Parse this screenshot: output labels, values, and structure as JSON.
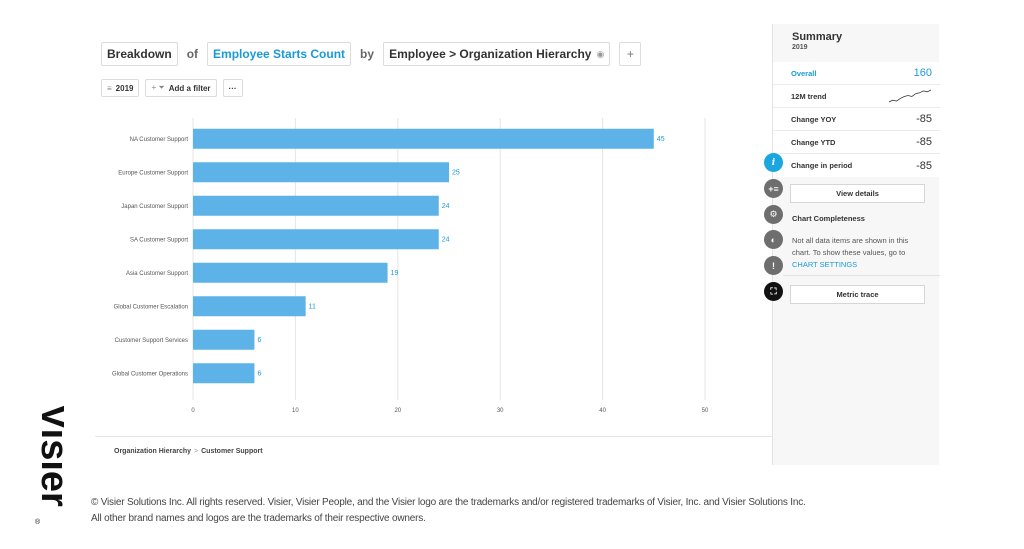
{
  "toolbar": {
    "breakdown": "Breakdown",
    "of": "of",
    "metric": "Employee Starts Count",
    "by": "by",
    "dimension": "Employee > Organization Hierarchy",
    "add": "+"
  },
  "filters": {
    "year": "2019",
    "add_filter": "Add a filter",
    "more": "···"
  },
  "chart_data": {
    "type": "bar",
    "orientation": "horizontal",
    "categories": [
      "NA Customer Support",
      "Europe Customer Support",
      "Japan Customer Support",
      "SA Customer Support",
      "Asia Customer Support",
      "Global Customer Escalation",
      "Customer Support Services",
      "Global Customer Operations"
    ],
    "values": [
      45,
      25,
      24,
      24,
      19,
      11,
      6,
      6
    ],
    "value_labels": [
      "45",
      "25",
      "24",
      "24",
      "19",
      "11",
      "6",
      "6"
    ],
    "xlim": [
      0,
      50
    ],
    "x_ticks": [
      0,
      10,
      20,
      30,
      40,
      50
    ],
    "x_tick_labels": [
      "0",
      "10",
      "20",
      "30",
      "40",
      "50"
    ],
    "grid": true,
    "bar_color": "#5db3e8",
    "label_color": "#1a9bd7"
  },
  "breadcrumb": {
    "root": "Organization Hierarchy",
    "arrow": ">",
    "current": "Customer Support"
  },
  "summary": {
    "title": "Summary",
    "year": "2019",
    "rows": [
      {
        "label": "Overall",
        "value": "160"
      },
      {
        "label": "12M trend",
        "value": ""
      },
      {
        "label": "Change YOY",
        "value": "-85"
      },
      {
        "label": "Change YTD",
        "value": "-85"
      },
      {
        "label": "Change in period",
        "value": "-85"
      }
    ],
    "trend": [
      2,
      3,
      2.5,
      4,
      5,
      5.5,
      5,
      6.5,
      7,
      8,
      7.5,
      8.5
    ],
    "view_details": "View details",
    "completeness_title": "Chart Completeness",
    "completeness_note": "Not all data items are shown in this chart. To show these values, go to",
    "chart_settings_link": "CHART SETTINGS",
    "metric_trace": "Metric trace"
  },
  "side_icons": {
    "info": "i",
    "add_list": "+≡",
    "settings": "⚙",
    "palette": "◐",
    "alert": "!",
    "trace": "⛶"
  },
  "footer": {
    "line1": "© Visier Solutions Inc. All rights reserved. Visier, Visier People, and the Visier logo are the trademarks and/or registered trademarks of Visier, Inc. and Visier Solutions Inc.",
    "line2": "All other brand names and logos are the trademarks of their respective owners."
  },
  "logo": {
    "text": "Visier",
    "mark": "®"
  }
}
